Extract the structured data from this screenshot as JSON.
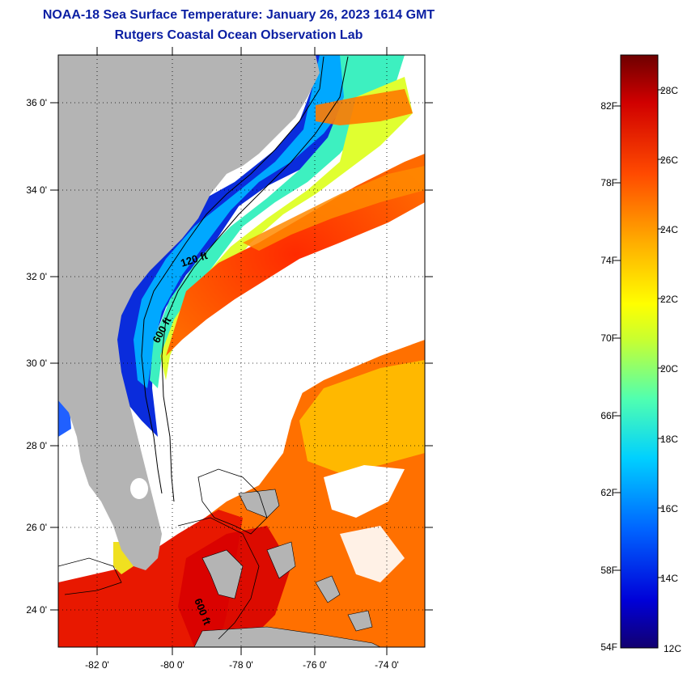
{
  "title": "NOAA-18 Sea Surface Temperature:  January 26, 2023 1614 GMT",
  "subtitle": "Rutgers Coastal Ocean Observation Lab",
  "map": {
    "lat_labels": [
      "36 0'",
      "34 0'",
      "32 0'",
      "30 0'",
      "28 0'",
      "26 0'",
      "24 0'"
    ],
    "lon_labels": [
      "-82 0'",
      "-80 0'",
      "-78 0'",
      "-76 0'",
      "-74 0'"
    ],
    "contours": [
      "120 ft",
      "600 ft",
      "600 ft"
    ]
  },
  "colorbar": {
    "fahrenheit": [
      "82F",
      "78F",
      "74F",
      "70F",
      "66F",
      "62F",
      "58F",
      "54F"
    ],
    "celsius": [
      "28C",
      "26C",
      "24C",
      "22C",
      "20C",
      "18C",
      "16C",
      "14C",
      "12C"
    ]
  },
  "colors": {
    "land": "#b4b4b4",
    "title": "#0b1fa3",
    "cloud": "#ffffff"
  }
}
